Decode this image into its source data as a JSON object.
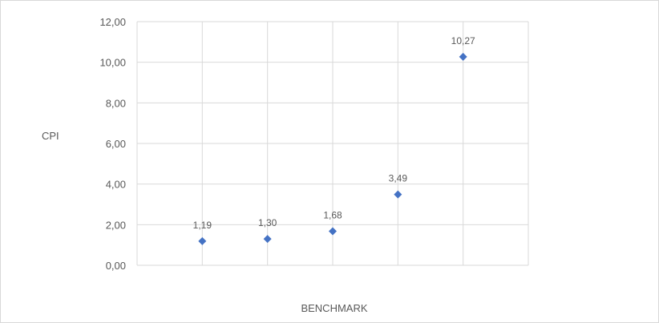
{
  "chart_data": {
    "type": "scatter",
    "title": "",
    "xlabel": "BENCHMARK",
    "ylabel": "CPI",
    "x": [
      1,
      2,
      3,
      4,
      5
    ],
    "xlim": [
      0,
      6
    ],
    "ylim": [
      0,
      12
    ],
    "y_ticks": [
      "0,00",
      "2,00",
      "4,00",
      "6,00",
      "8,00",
      "10,00",
      "12,00"
    ],
    "series": [
      {
        "values": [
          1.19,
          1.3,
          1.68,
          3.49,
          10.27
        ],
        "data_labels": [
          "1,19",
          "1,30",
          "1,68",
          "3,49",
          "10,27"
        ],
        "color": "#4472c4",
        "marker": "diamond"
      }
    ],
    "grid": true,
    "legend": "none"
  }
}
